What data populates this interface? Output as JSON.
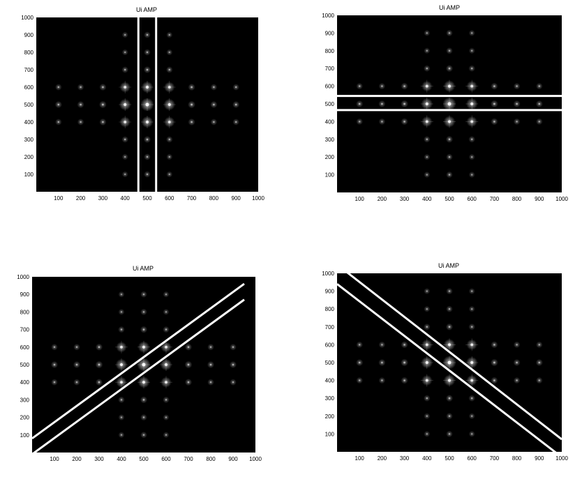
{
  "chart_data": [
    {
      "type": "heatmap",
      "title": "Ui AMP",
      "xlabel": "",
      "ylabel": "",
      "xlim": [
        0,
        1000
      ],
      "ylim": [
        0,
        1000
      ],
      "xticks": [
        100,
        200,
        300,
        400,
        500,
        600,
        700,
        800,
        900,
        1000
      ],
      "yticks": [
        100,
        200,
        300,
        400,
        500,
        600,
        700,
        800,
        900,
        1000
      ],
      "colormap": "grayscale",
      "background_color": "#000000",
      "peaks": [
        {
          "x": 500,
          "y": 500,
          "intensity": 1.0
        },
        {
          "x": 400,
          "y": 500,
          "intensity": 0.8
        },
        {
          "x": 600,
          "y": 500,
          "intensity": 0.8
        },
        {
          "x": 500,
          "y": 400,
          "intensity": 0.8
        },
        {
          "x": 500,
          "y": 600,
          "intensity": 0.8
        },
        {
          "x": 400,
          "y": 400,
          "intensity": 0.7
        },
        {
          "x": 600,
          "y": 600,
          "intensity": 0.7
        },
        {
          "x": 400,
          "y": 600,
          "intensity": 0.7
        },
        {
          "x": 600,
          "y": 400,
          "intensity": 0.7
        },
        {
          "x": 100,
          "y": 400,
          "intensity": 0.25
        },
        {
          "x": 200,
          "y": 400,
          "intensity": 0.25
        },
        {
          "x": 300,
          "y": 400,
          "intensity": 0.3
        },
        {
          "x": 700,
          "y": 400,
          "intensity": 0.3
        },
        {
          "x": 800,
          "y": 400,
          "intensity": 0.25
        },
        {
          "x": 900,
          "y": 400,
          "intensity": 0.25
        },
        {
          "x": 100,
          "y": 500,
          "intensity": 0.3
        },
        {
          "x": 200,
          "y": 500,
          "intensity": 0.3
        },
        {
          "x": 300,
          "y": 500,
          "intensity": 0.35
        },
        {
          "x": 700,
          "y": 500,
          "intensity": 0.35
        },
        {
          "x": 800,
          "y": 500,
          "intensity": 0.3
        },
        {
          "x": 900,
          "y": 500,
          "intensity": 0.3
        },
        {
          "x": 100,
          "y": 600,
          "intensity": 0.25
        },
        {
          "x": 200,
          "y": 600,
          "intensity": 0.25
        },
        {
          "x": 300,
          "y": 600,
          "intensity": 0.3
        },
        {
          "x": 700,
          "y": 600,
          "intensity": 0.3
        },
        {
          "x": 800,
          "y": 600,
          "intensity": 0.25
        },
        {
          "x": 900,
          "y": 600,
          "intensity": 0.25
        },
        {
          "x": 400,
          "y": 100,
          "intensity": 0.2
        },
        {
          "x": 500,
          "y": 100,
          "intensity": 0.25
        },
        {
          "x": 600,
          "y": 100,
          "intensity": 0.2
        },
        {
          "x": 400,
          "y": 200,
          "intensity": 0.2
        },
        {
          "x": 500,
          "y": 200,
          "intensity": 0.25
        },
        {
          "x": 600,
          "y": 200,
          "intensity": 0.2
        },
        {
          "x": 400,
          "y": 300,
          "intensity": 0.25
        },
        {
          "x": 500,
          "y": 300,
          "intensity": 0.3
        },
        {
          "x": 600,
          "y": 300,
          "intensity": 0.25
        },
        {
          "x": 400,
          "y": 700,
          "intensity": 0.25
        },
        {
          "x": 500,
          "y": 700,
          "intensity": 0.3
        },
        {
          "x": 600,
          "y": 700,
          "intensity": 0.25
        },
        {
          "x": 400,
          "y": 800,
          "intensity": 0.2
        },
        {
          "x": 500,
          "y": 800,
          "intensity": 0.25
        },
        {
          "x": 600,
          "y": 800,
          "intensity": 0.2
        },
        {
          "x": 400,
          "y": 900,
          "intensity": 0.2
        },
        {
          "x": 500,
          "y": 900,
          "intensity": 0.25
        },
        {
          "x": 600,
          "y": 900,
          "intensity": 0.2
        }
      ],
      "overlay_lines": [
        {
          "x1": 460,
          "y1": 0,
          "x2": 460,
          "y2": 1000
        },
        {
          "x1": 540,
          "y1": 0,
          "x2": 540,
          "y2": 1000
        }
      ]
    },
    {
      "type": "heatmap",
      "title": "Ui AMP",
      "xlabel": "",
      "ylabel": "",
      "xlim": [
        0,
        1000
      ],
      "ylim": [
        0,
        1000
      ],
      "xticks": [
        100,
        200,
        300,
        400,
        500,
        600,
        700,
        800,
        900,
        1000
      ],
      "yticks": [
        100,
        200,
        300,
        400,
        500,
        600,
        700,
        800,
        900,
        1000
      ],
      "colormap": "grayscale",
      "background_color": "#000000",
      "peaks": "same",
      "overlay_lines": [
        {
          "x1": 0,
          "y1": 545,
          "x2": 1000,
          "y2": 545
        },
        {
          "x1": 0,
          "y1": 465,
          "x2": 1000,
          "y2": 465
        }
      ]
    },
    {
      "type": "heatmap",
      "title": "Ui AMP",
      "xlabel": "",
      "ylabel": "",
      "xlim": [
        0,
        1000
      ],
      "ylim": [
        0,
        1000
      ],
      "xticks": [
        100,
        200,
        300,
        400,
        500,
        600,
        700,
        800,
        900,
        1000
      ],
      "yticks": [
        100,
        200,
        300,
        400,
        500,
        600,
        700,
        800,
        900,
        1000
      ],
      "colormap": "grayscale",
      "background_color": "#000000",
      "peaks": "same",
      "overlay_lines": [
        {
          "x1": 0,
          "y1": 80,
          "x2": 950,
          "y2": 960
        },
        {
          "x1": 0,
          "y1": -10,
          "x2": 950,
          "y2": 870
        }
      ]
    },
    {
      "type": "heatmap",
      "title": "Ui AMP",
      "xlabel": "",
      "ylabel": "",
      "xlim": [
        0,
        1000
      ],
      "ylim": [
        0,
        1000
      ],
      "xticks": [
        100,
        200,
        300,
        400,
        500,
        600,
        700,
        800,
        900,
        1000
      ],
      "yticks": [
        100,
        200,
        300,
        400,
        500,
        600,
        700,
        800,
        900,
        1000
      ],
      "colormap": "grayscale",
      "background_color": "#000000",
      "peaks": "same",
      "overlay_lines": [
        {
          "x1": 40,
          "y1": 1010,
          "x2": 1000,
          "y2": 70
        },
        {
          "x1": 0,
          "y1": 940,
          "x2": 1000,
          "y2": -30
        }
      ]
    }
  ],
  "colors": {
    "plot_background": "#000000",
    "overlay_line": "#ffffff",
    "page_background": "#ffffff"
  }
}
